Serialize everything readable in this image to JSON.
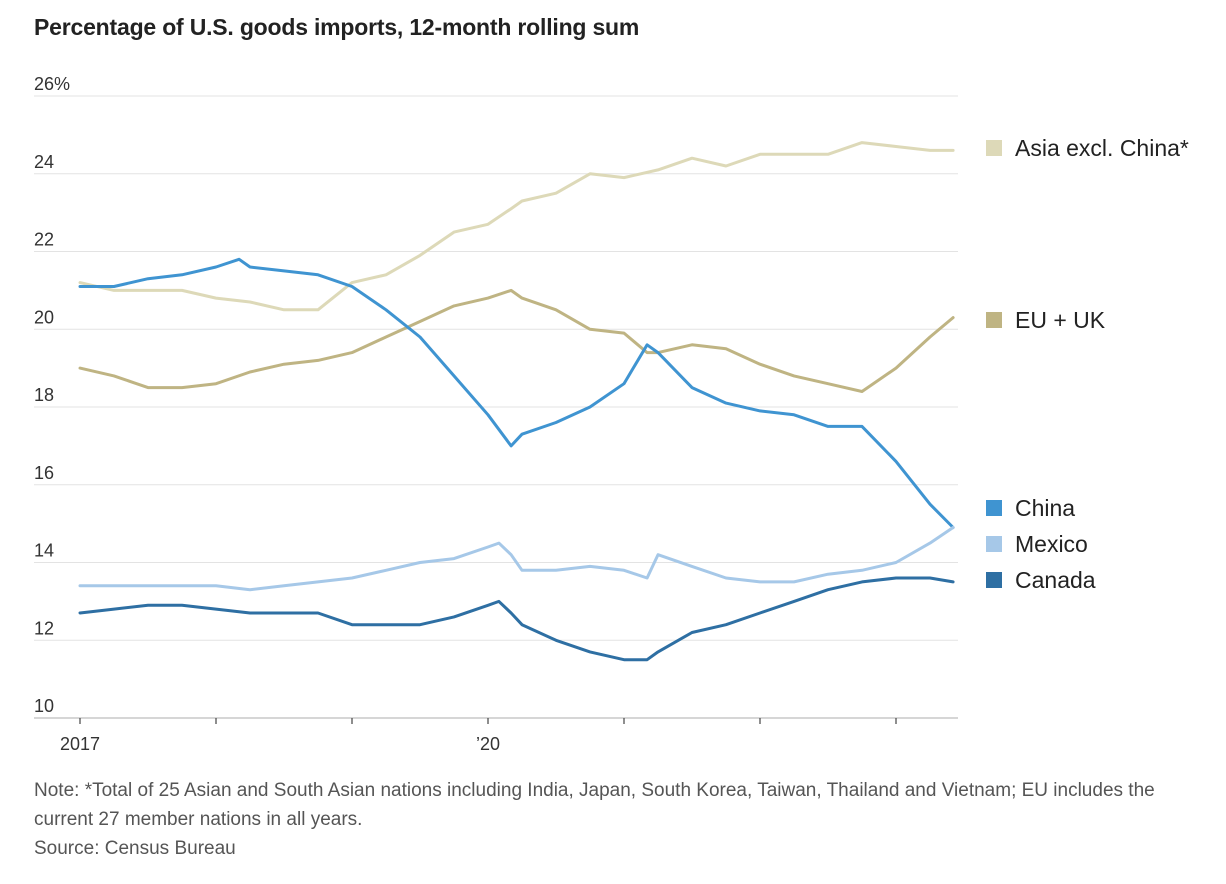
{
  "chart_data": {
    "type": "line",
    "title": "Percentage of U.S. goods imports, 12-month rolling sum",
    "ylim": [
      10,
      26
    ],
    "y_ticks": [
      "26%",
      "24",
      "22",
      "20",
      "18",
      "16",
      "14",
      "12",
      "10"
    ],
    "x_tick_labels": [
      "2017",
      "’20"
    ],
    "x_range": [
      2017.0,
      2023.5
    ],
    "grid": true,
    "legend_position": "right",
    "series": [
      {
        "name": "Asia excl. China*",
        "color": "#ddd9b8",
        "x": [
          2017.0,
          2017.25,
          2017.5,
          2017.75,
          2018.0,
          2018.25,
          2018.5,
          2018.75,
          2019.0,
          2019.25,
          2019.5,
          2019.75,
          2020.0,
          2020.17,
          2020.25,
          2020.5,
          2020.75,
          2021.0,
          2021.25,
          2021.5,
          2021.75,
          2022.0,
          2022.25,
          2022.5,
          2022.75,
          2023.0,
          2023.25,
          2023.42
        ],
        "values": [
          21.2,
          21.0,
          21.0,
          21.0,
          20.8,
          20.7,
          20.5,
          20.5,
          21.2,
          21.4,
          21.9,
          22.5,
          22.7,
          23.1,
          23.3,
          23.5,
          24.0,
          23.9,
          24.1,
          24.4,
          24.2,
          24.5,
          24.5,
          24.5,
          24.8,
          24.7,
          24.6,
          24.6
        ]
      },
      {
        "name": "EU + UK",
        "color": "#bfb483",
        "x": [
          2017.0,
          2017.25,
          2017.5,
          2017.75,
          2018.0,
          2018.25,
          2018.5,
          2018.75,
          2019.0,
          2019.25,
          2019.5,
          2019.75,
          2020.0,
          2020.17,
          2020.25,
          2020.5,
          2020.75,
          2021.0,
          2021.17,
          2021.25,
          2021.5,
          2021.75,
          2022.0,
          2022.25,
          2022.5,
          2022.75,
          2023.0,
          2023.25,
          2023.42
        ],
        "values": [
          19.0,
          18.8,
          18.5,
          18.5,
          18.6,
          18.9,
          19.1,
          19.2,
          19.4,
          19.8,
          20.2,
          20.6,
          20.8,
          21.0,
          20.8,
          20.5,
          20.0,
          19.9,
          19.4,
          19.4,
          19.6,
          19.5,
          19.1,
          18.8,
          18.6,
          18.4,
          19.0,
          19.8,
          20.3
        ]
      },
      {
        "name": "China",
        "color": "#3f94d1",
        "x": [
          2017.0,
          2017.25,
          2017.5,
          2017.75,
          2018.0,
          2018.17,
          2018.25,
          2018.5,
          2018.75,
          2019.0,
          2019.25,
          2019.5,
          2019.75,
          2020.0,
          2020.17,
          2020.25,
          2020.5,
          2020.75,
          2021.0,
          2021.17,
          2021.25,
          2021.5,
          2021.75,
          2022.0,
          2022.25,
          2022.5,
          2022.75,
          2023.0,
          2023.25,
          2023.42
        ],
        "values": [
          21.1,
          21.1,
          21.3,
          21.4,
          21.6,
          21.8,
          21.6,
          21.5,
          21.4,
          21.1,
          20.5,
          19.8,
          18.8,
          17.8,
          17.0,
          17.3,
          17.6,
          18.0,
          18.6,
          19.6,
          19.4,
          18.5,
          18.1,
          17.9,
          17.8,
          17.5,
          17.5,
          16.6,
          15.5,
          14.9
        ]
      },
      {
        "name": "Mexico",
        "color": "#a6c8e8",
        "x": [
          2017.0,
          2017.25,
          2017.5,
          2017.75,
          2018.0,
          2018.25,
          2018.5,
          2018.75,
          2019.0,
          2019.25,
          2019.5,
          2019.75,
          2020.0,
          2020.08,
          2020.17,
          2020.25,
          2020.5,
          2020.75,
          2021.0,
          2021.17,
          2021.25,
          2021.5,
          2021.75,
          2022.0,
          2022.25,
          2022.5,
          2022.75,
          2023.0,
          2023.25,
          2023.42
        ],
        "values": [
          13.4,
          13.4,
          13.4,
          13.4,
          13.4,
          13.3,
          13.4,
          13.5,
          13.6,
          13.8,
          14.0,
          14.1,
          14.4,
          14.5,
          14.2,
          13.8,
          13.8,
          13.9,
          13.8,
          13.6,
          14.2,
          13.9,
          13.6,
          13.5,
          13.5,
          13.7,
          13.8,
          14.0,
          14.5,
          14.9
        ]
      },
      {
        "name": "Canada",
        "color": "#2e6fa3",
        "x": [
          2017.0,
          2017.25,
          2017.5,
          2017.75,
          2018.0,
          2018.25,
          2018.5,
          2018.75,
          2019.0,
          2019.25,
          2019.5,
          2019.75,
          2020.0,
          2020.08,
          2020.17,
          2020.25,
          2020.5,
          2020.75,
          2021.0,
          2021.17,
          2021.25,
          2021.5,
          2021.75,
          2022.0,
          2022.25,
          2022.5,
          2022.75,
          2023.0,
          2023.25,
          2023.42
        ],
        "values": [
          12.7,
          12.8,
          12.9,
          12.9,
          12.8,
          12.7,
          12.7,
          12.7,
          12.4,
          12.4,
          12.4,
          12.6,
          12.9,
          13.0,
          12.7,
          12.4,
          12.0,
          11.7,
          11.5,
          11.5,
          11.7,
          12.2,
          12.4,
          12.7,
          13.0,
          13.3,
          13.5,
          13.6,
          13.6,
          13.5
        ]
      }
    ]
  },
  "notes": {
    "line1": "Note: *Total of 25 Asian and South Asian nations including India, Japan, South Korea, Taiwan, Thailand and Vietnam; EU includes the current 27 member nations in all years.",
    "source": "Source: Census Bureau"
  }
}
